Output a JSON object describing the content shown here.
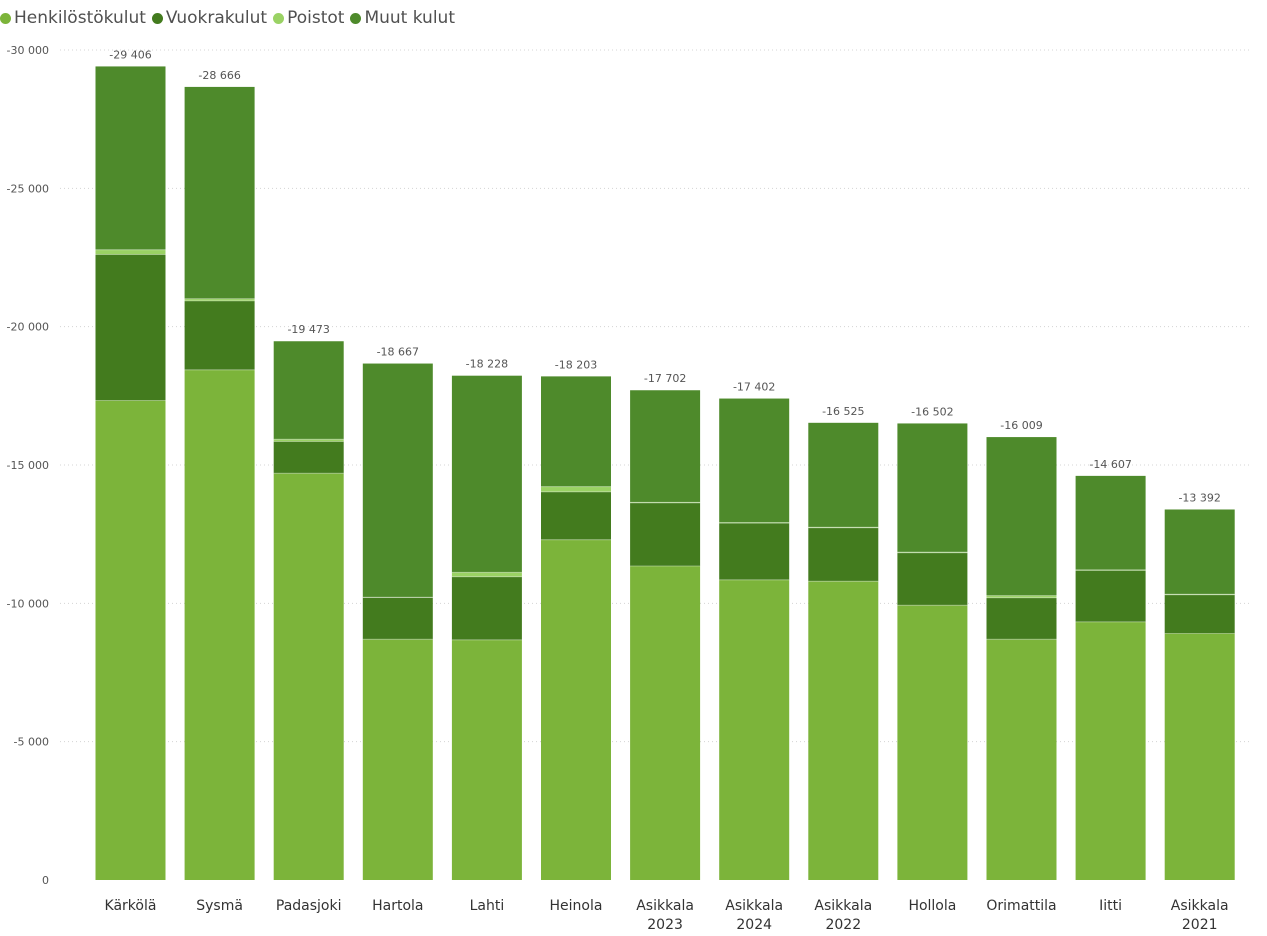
{
  "legend": [
    {
      "label": "Henkilöstökulut",
      "color": "#7cb43a"
    },
    {
      "label": "Vuokrakulut",
      "color": "#437b1e"
    },
    {
      "label": "Poistot",
      "color": "#9ad264"
    },
    {
      "label": "Muut kulut",
      "color": "#4e8a2b"
    }
  ],
  "chart_data": {
    "type": "bar",
    "stacked": true,
    "categories": [
      "Kärkölä",
      "Sysmä",
      "Padasjoki",
      "Hartola",
      "Lahti",
      "Heinola",
      "Asikkala 2023",
      "Asikkala 2024",
      "Asikkala 2022",
      "Hollola",
      "Orimattila",
      "Iitti",
      "Asikkala 2021"
    ],
    "series": [
      {
        "name": "Henkilöstökulut",
        "color": "#7cb43a",
        "values": [
          -17330,
          -18440,
          -14700,
          -8700,
          -8680,
          -12300,
          -11350,
          -10850,
          -10800,
          -9930,
          -8700,
          -9330,
          -8910
        ]
      },
      {
        "name": "Vuokrakulut",
        "color": "#437b1e",
        "values": [
          -5280,
          -2490,
          -1150,
          -1510,
          -2280,
          -1730,
          -2280,
          -2050,
          -1930,
          -1900,
          -1500,
          -1860,
          -1400
        ]
      },
      {
        "name": "Poistot",
        "color": "#9ad264",
        "values": [
          -170,
          -80,
          -80,
          -10,
          -160,
          -190,
          -20,
          -20,
          -20,
          -20,
          -80,
          -20,
          -20
        ]
      },
      {
        "name": "Muut kulut",
        "color": "#4e8a2b",
        "values": [
          -6626,
          -7656,
          -3543,
          -8447,
          -7108,
          -3983,
          -4052,
          -4482,
          -3775,
          -4652,
          -5729,
          -3397,
          -3062
        ]
      }
    ],
    "totals": [
      "-29 406",
      "-28 666",
      "-19 473",
      "-18 667",
      "-18 228",
      "-18 203",
      "-17 702",
      "-17 402",
      "-16 525",
      "-16 502",
      "-16 009",
      "-14 607",
      "-13 392"
    ],
    "yticks": [
      0,
      -5000,
      -10000,
      -15000,
      -20000,
      -25000,
      -30000
    ],
    "ytick_labels": [
      "0",
      "-5 000",
      "-10 000",
      "-15 000",
      "-20 000",
      "-25 000",
      "-30 000"
    ],
    "ylim": [
      -30000,
      0
    ],
    "grid": true,
    "legend_position": "top-left"
  }
}
